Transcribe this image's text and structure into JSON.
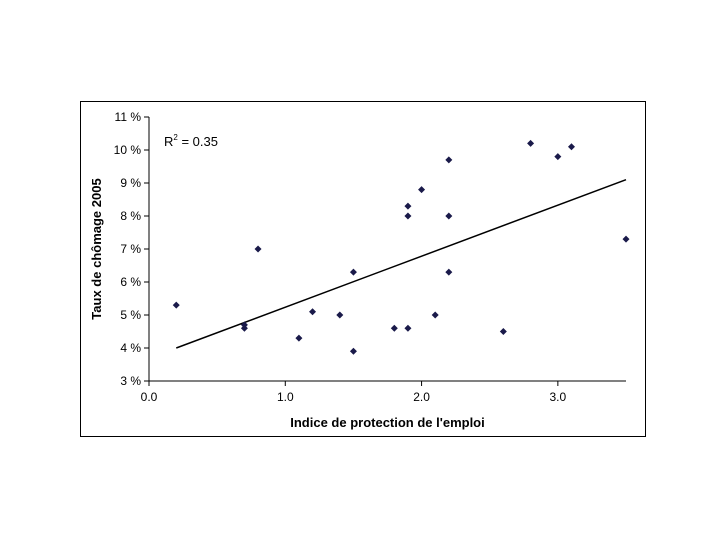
{
  "chart_data": {
    "type": "scatter",
    "title": "",
    "xlabel": "Indice de protection de l'emploi",
    "ylabel": "Taux de chômage 2005",
    "xlim": [
      0,
      3.5
    ],
    "ylim": [
      3,
      11
    ],
    "x_ticks": [
      "0.0",
      "1.0",
      "2.0",
      "3.0"
    ],
    "x_tick_values": [
      0,
      1,
      2,
      3
    ],
    "y_ticks": [
      "3 %",
      "4 %",
      "5 %",
      "6 %",
      "7 %",
      "8 %",
      "9 %",
      "10 %",
      "11 %"
    ],
    "y_tick_values": [
      3,
      4,
      5,
      6,
      7,
      8,
      9,
      10,
      11
    ],
    "grid": false,
    "legend": "none",
    "annotation": {
      "base": "R",
      "sup": "2",
      "rest": " = 0.35"
    },
    "marker_color": "#1a1a4a",
    "trendline": {
      "x": [
        0.2,
        3.5
      ],
      "y": [
        4.0,
        9.1
      ]
    },
    "points": [
      {
        "x": 0.2,
        "y": 5.3
      },
      {
        "x": 0.7,
        "y": 4.6
      },
      {
        "x": 0.7,
        "y": 4.7
      },
      {
        "x": 0.8,
        "y": 7.0
      },
      {
        "x": 1.1,
        "y": 4.3
      },
      {
        "x": 1.2,
        "y": 5.1
      },
      {
        "x": 1.4,
        "y": 5.0
      },
      {
        "x": 1.5,
        "y": 6.3
      },
      {
        "x": 1.5,
        "y": 3.9
      },
      {
        "x": 1.8,
        "y": 4.6
      },
      {
        "x": 1.9,
        "y": 4.6
      },
      {
        "x": 1.9,
        "y": 8.0
      },
      {
        "x": 1.9,
        "y": 8.3
      },
      {
        "x": 2.0,
        "y": 8.8
      },
      {
        "x": 2.1,
        "y": 5.0
      },
      {
        "x": 2.2,
        "y": 9.7
      },
      {
        "x": 2.2,
        "y": 8.0
      },
      {
        "x": 2.2,
        "y": 6.3
      },
      {
        "x": 2.6,
        "y": 4.5
      },
      {
        "x": 2.8,
        "y": 10.2
      },
      {
        "x": 3.0,
        "y": 9.8
      },
      {
        "x": 3.1,
        "y": 10.1
      },
      {
        "x": 3.5,
        "y": 7.3
      }
    ]
  }
}
